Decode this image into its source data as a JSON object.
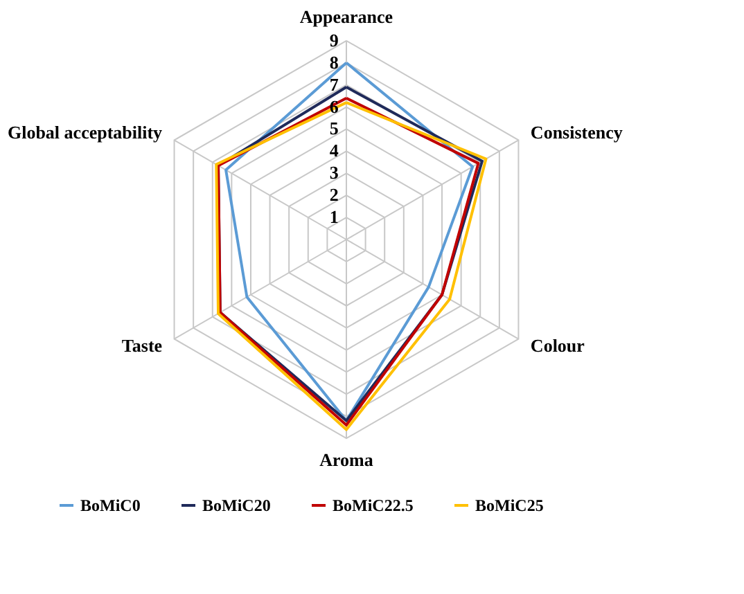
{
  "chart_data": {
    "type": "radar",
    "categories": [
      "Appearance",
      "Consistency",
      "Colour",
      "Aroma",
      "Taste",
      "Global acceptability"
    ],
    "ylim": [
      0,
      9
    ],
    "yticks": [
      1,
      2,
      3,
      4,
      5,
      6,
      7,
      8,
      9
    ],
    "grid": true,
    "legend": "bottom",
    "marker": "none",
    "series": [
      {
        "name": "BoMiC0",
        "color": "#5b9bd5",
        "values": [
          8.0,
          6.6,
          4.3,
          8.2,
          5.2,
          6.3
        ]
      },
      {
        "name": "BoMiC20",
        "color": "#1f2a5a",
        "values": [
          6.9,
          7.1,
          5.0,
          8.2,
          6.6,
          6.7
        ]
      },
      {
        "name": "BoMiC22.5",
        "color": "#c00000",
        "values": [
          6.4,
          6.9,
          5.0,
          8.4,
          6.6,
          6.7
        ]
      },
      {
        "name": "BoMiC25",
        "color": "#ffc000",
        "values": [
          6.2,
          7.3,
          5.4,
          8.6,
          6.7,
          6.8
        ]
      }
    ]
  }
}
